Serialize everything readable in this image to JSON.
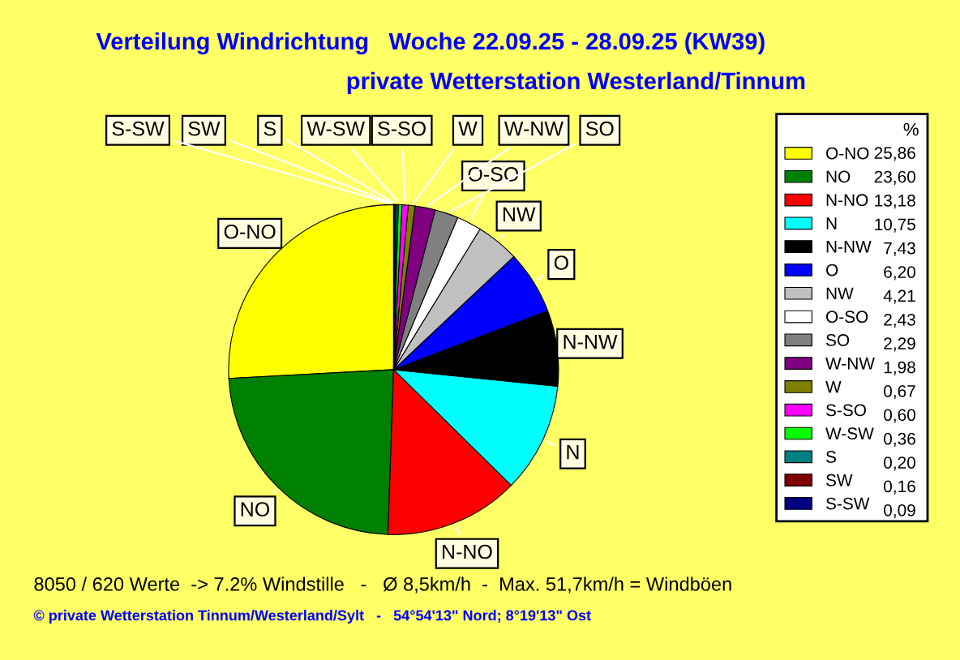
{
  "chart_data": {
    "type": "pie",
    "title": "Verteilung Windrichtung   Woche 22.09.25 - 28.09.25 (KW39)",
    "subtitle": "private Wetterstation Westerland/Tinnum",
    "legend_title": "%",
    "categories": [
      "O-NO",
      "NO",
      "N-NO",
      "N",
      "N-NW",
      "O",
      "NW",
      "O-SO",
      "SO",
      "W-NW",
      "W",
      "S-SO",
      "W-SW",
      "S",
      "SW",
      "S-SW"
    ],
    "values": [
      25.86,
      23.6,
      13.18,
      10.75,
      7.43,
      6.2,
      4.21,
      2.43,
      2.29,
      1.98,
      0.67,
      0.6,
      0.36,
      0.2,
      0.16,
      0.09
    ],
    "value_labels": [
      "25,86",
      "23,60",
      "13,18",
      "10,75",
      "7,43",
      "6,20",
      "4,21",
      "2,43",
      "2,29",
      "1,98",
      "0,67",
      "0,60",
      "0,36",
      "0,20",
      "0,16",
      "0,09"
    ],
    "colors": [
      "#ffff00",
      "#008000",
      "#ff0000",
      "#00ffff",
      "#000000",
      "#0000ff",
      "#c0c0c0",
      "#ffffff",
      "#808080",
      "#800080",
      "#808000",
      "#ff00ff",
      "#00ff00",
      "#008080",
      "#800000",
      "#000080"
    ],
    "legend": "right",
    "annotations": [
      "8050 / 620 Werte  -> 7.2% Windstille   -   Ø 8,5km/h  -  Max. 51,7km/h = Windböen",
      "© private Wetterstation Tinnum/Westerland/Sylt   -   54°54'13\" Nord; 8°19'13\" Ost"
    ]
  }
}
